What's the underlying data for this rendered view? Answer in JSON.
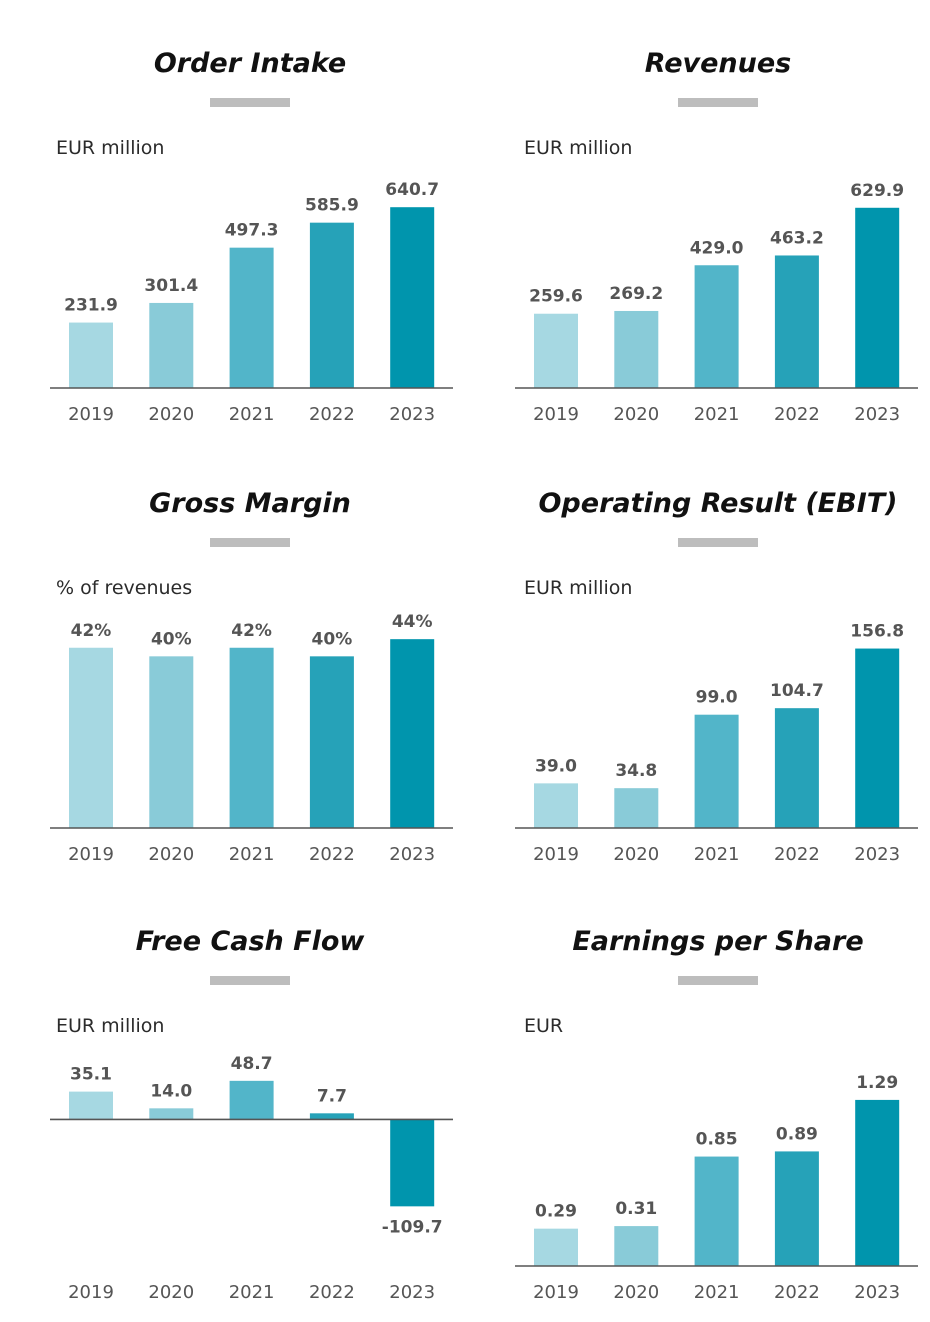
{
  "chart_data": [
    {
      "type": "bar",
      "title": "Order Intake",
      "unit_label": "EUR million",
      "categories": [
        "2019",
        "2020",
        "2021",
        "2022",
        "2023"
      ],
      "values": [
        231.9,
        301.4,
        497.3,
        585.9,
        640.7
      ],
      "labels": [
        "231.9",
        "301.4",
        "497.3",
        "585.9",
        "640.7"
      ],
      "ylim": [
        0,
        730
      ]
    },
    {
      "type": "bar",
      "title": "Revenues",
      "unit_label": "EUR million",
      "categories": [
        "2019",
        "2020",
        "2021",
        "2022",
        "2023"
      ],
      "values": [
        259.6,
        269.2,
        429.0,
        463.2,
        629.9
      ],
      "labels": [
        "259.6",
        "269.2",
        "429.0",
        "463.2",
        "629.9"
      ],
      "ylim": [
        0,
        720
      ]
    },
    {
      "type": "bar",
      "title": "Gross Margin",
      "unit_label": "% of revenues",
      "categories": [
        "2019",
        "2020",
        "2021",
        "2022",
        "2023"
      ],
      "values": [
        42,
        40,
        42,
        40,
        44
      ],
      "labels": [
        "42%",
        "40%",
        "42%",
        "40%",
        "44%"
      ],
      "ylim": [
        0,
        48
      ]
    },
    {
      "type": "bar",
      "title": "Operating Result (EBIT)",
      "unit_label": "EUR million",
      "categories": [
        "2019",
        "2020",
        "2021",
        "2022",
        "2023"
      ],
      "values": [
        39.0,
        34.8,
        99.0,
        104.7,
        156.8
      ],
      "labels": [
        "39.0",
        "34.8",
        "99.0",
        "104.7",
        "156.8"
      ],
      "ylim": [
        0,
        180
      ]
    },
    {
      "type": "bar",
      "title": "Free Cash Flow",
      "unit_label": "EUR million",
      "categories": [
        "2019",
        "2020",
        "2021",
        "2022",
        "2023"
      ],
      "values": [
        35.1,
        14.0,
        48.7,
        7.7,
        -109.7
      ],
      "labels": [
        "35.1",
        "14.0",
        "48.7",
        "7.7",
        "-109.7"
      ],
      "ylim": [
        -185,
        75
      ]
    },
    {
      "type": "bar",
      "title": "Earnings per Share",
      "unit_label": "EUR",
      "categories": [
        "2019",
        "2020",
        "2021",
        "2022",
        "2023"
      ],
      "values": [
        0.29,
        0.31,
        0.85,
        0.89,
        1.29
      ],
      "labels": [
        "0.29",
        "0.31",
        "0.85",
        "0.89",
        "1.29"
      ],
      "ylim": [
        0,
        1.6
      ]
    }
  ],
  "colors": {
    "bars": [
      "#a6d8e2",
      "#89cbd8",
      "#52b5c9",
      "#26a2b8",
      "#0095ad"
    ],
    "axis": "#555555",
    "text": "#555555",
    "deco": "#bdbdbd"
  }
}
